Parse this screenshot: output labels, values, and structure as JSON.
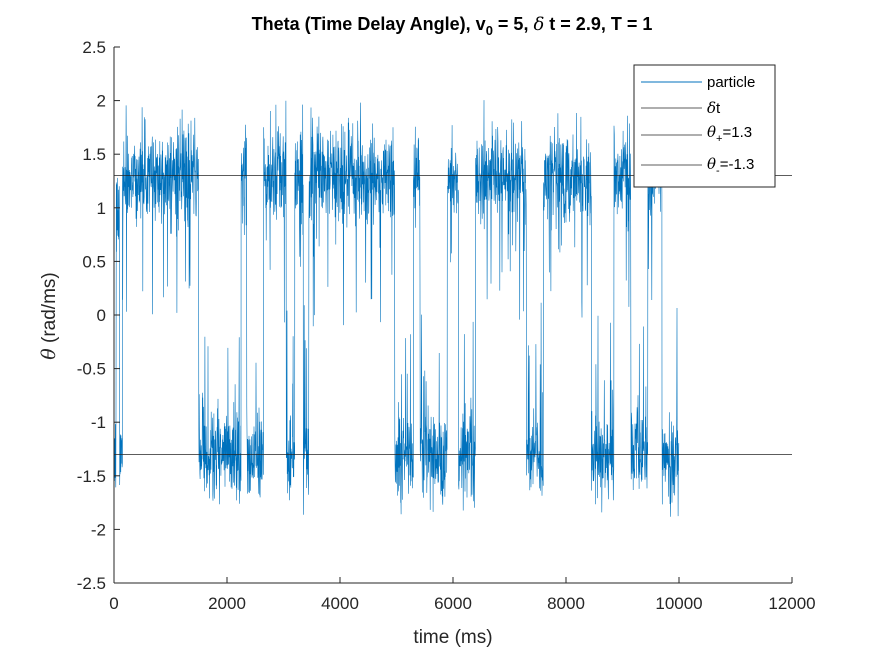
{
  "chart_data": {
    "type": "line",
    "title": {
      "prefix": "Theta (Time Delay Angle), v",
      "v_subscript": "0",
      "after_v": " = 5, ",
      "delta_symbol": "δ",
      "after_delta": " t = 2.9, T = 1"
    },
    "xlabel": "time (ms)",
    "ylabel_symbol": "θ",
    "ylabel_text": " (rad/ms)",
    "xlim": [
      0,
      12000
    ],
    "ylim": [
      -2.5,
      2.5
    ],
    "x_ticks": [
      0,
      2000,
      4000,
      6000,
      8000,
      10000,
      12000
    ],
    "y_ticks": [
      -2.5,
      -2,
      -1.5,
      -1,
      -0.5,
      0,
      0.5,
      1,
      1.5,
      2,
      2.5
    ],
    "x_tick_labels": [
      "0",
      "2000",
      "4000",
      "6000",
      "8000",
      "10000",
      "12000"
    ],
    "y_tick_labels": [
      "-2.5",
      "-2",
      "-1.5",
      "-1",
      "-0.5",
      "0",
      "0.5",
      "1",
      "1.5",
      "2",
      "2.5"
    ],
    "grid": false,
    "legend_position": "top-right",
    "colors": {
      "particle": "#0072BD",
      "lines": "#262626"
    },
    "legend": [
      {
        "key": "particle",
        "text": "particle"
      },
      {
        "key": "delta_t",
        "symbol": "δ",
        "text": "t"
      },
      {
        "key": "theta_plus",
        "symbol": "θ",
        "sub": "+",
        "text": "=1.3"
      },
      {
        "key": "theta_minus",
        "symbol": "θ",
        "sub": "-",
        "text": "=-1.3"
      }
    ],
    "series": [
      {
        "name": "particle",
        "style": "noisy-switching",
        "x_range": [
          0,
          10000
        ],
        "amplitude": 1.3,
        "regimes": [
          [
            0,
            40,
            -1.3
          ],
          [
            40,
            100,
            0.9
          ],
          [
            100,
            150,
            -1.3
          ],
          [
            150,
            230,
            1.3
          ],
          [
            230,
            1500,
            1.3
          ],
          [
            1500,
            2250,
            -1.3
          ],
          [
            2250,
            2350,
            1.3
          ],
          [
            2350,
            2650,
            -1.3
          ],
          [
            2650,
            3050,
            1.3
          ],
          [
            3050,
            3200,
            -1.3
          ],
          [
            3200,
            3350,
            1.3
          ],
          [
            3350,
            3450,
            -1.3
          ],
          [
            3450,
            4970,
            1.3
          ],
          [
            4970,
            5300,
            -1.3
          ],
          [
            5300,
            5420,
            1.3
          ],
          [
            5420,
            5900,
            -1.3
          ],
          [
            5900,
            6100,
            1.3
          ],
          [
            6100,
            6400,
            -1.3
          ],
          [
            6400,
            7300,
            1.3
          ],
          [
            7300,
            7600,
            -1.3
          ],
          [
            7600,
            8450,
            1.3
          ],
          [
            8450,
            8850,
            -1.3
          ],
          [
            8850,
            9150,
            1.3
          ],
          [
            9150,
            9450,
            -1.3
          ],
          [
            9450,
            9700,
            1.3
          ],
          [
            9700,
            10000,
            -1.3
          ]
        ]
      },
      {
        "name": "theta_plus",
        "style": "hline",
        "y": 1.3
      },
      {
        "name": "theta_minus",
        "style": "hline",
        "y": -1.3
      }
    ]
  }
}
